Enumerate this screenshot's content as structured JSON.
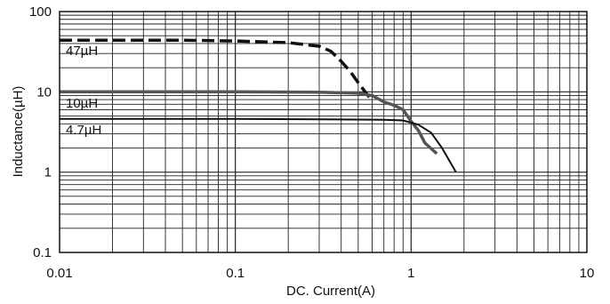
{
  "chart_data": {
    "type": "line",
    "xlabel": "DC. Current(A)",
    "ylabel": "Inductance(µH)",
    "xscale": "log",
    "yscale": "log",
    "xlim": [
      0.01,
      10
    ],
    "ylim": [
      0.1,
      100
    ],
    "grid": true,
    "x_ticks": [
      0.01,
      0.1,
      1,
      10
    ],
    "x_tick_labels": [
      "0.01",
      "0.1",
      "1",
      "10"
    ],
    "y_ticks": [
      0.1,
      1,
      10,
      100
    ],
    "y_tick_labels": [
      "0.1",
      "1",
      "10",
      "100"
    ],
    "series": [
      {
        "name": "47µH",
        "style": "dashed",
        "color": "#111111",
        "x": [
          0.01,
          0.05,
          0.1,
          0.2,
          0.3,
          0.35,
          0.4,
          0.45,
          0.5,
          0.58
        ],
        "y": [
          44,
          44,
          43,
          41,
          37,
          32,
          24,
          18,
          13,
          8.5
        ]
      },
      {
        "name": "10µH",
        "style": "solid-thick",
        "color": "#555555",
        "x": [
          0.01,
          0.1,
          0.3,
          0.5,
          0.6,
          0.7,
          0.8,
          0.9,
          1.0,
          1.1,
          1.2,
          1.4
        ],
        "y": [
          10,
          10,
          9.9,
          9.6,
          9.0,
          7.5,
          6.8,
          6.0,
          4.3,
          3.3,
          2.3,
          1.7
        ]
      },
      {
        "name": "4.7µH",
        "style": "solid",
        "color": "#111111",
        "x": [
          0.01,
          0.1,
          0.3,
          0.7,
          0.9,
          1.1,
          1.3,
          1.5,
          1.8
        ],
        "y": [
          4.6,
          4.6,
          4.55,
          4.5,
          4.4,
          3.9,
          3.1,
          2.0,
          1.0
        ]
      }
    ]
  }
}
